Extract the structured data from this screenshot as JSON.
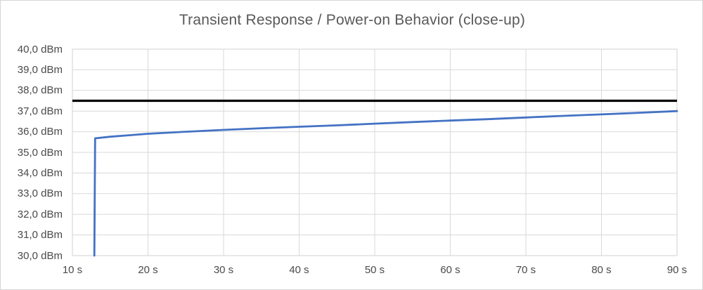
{
  "frame": {
    "background_color": "#ffffff",
    "border_color": "#d6d6d6"
  },
  "chart_data": {
    "type": "line",
    "title": "Transient Response / Power-on Behavior (close-up)",
    "xlabel": "",
    "ylabel": "",
    "x_unit": "s",
    "y_unit": "dBm",
    "xlim": [
      10,
      90
    ],
    "ylim": [
      30,
      40
    ],
    "grid": true,
    "legend": "none",
    "grid_color": "#d9d9d9",
    "x_ticks": [
      {
        "value": 10,
        "label": "10 s"
      },
      {
        "value": 20,
        "label": "20 s"
      },
      {
        "value": 30,
        "label": "30 s"
      },
      {
        "value": 40,
        "label": "40 s"
      },
      {
        "value": 50,
        "label": "50 s"
      },
      {
        "value": 60,
        "label": "60 s"
      },
      {
        "value": 70,
        "label": "70 s"
      },
      {
        "value": 80,
        "label": "80 s"
      },
      {
        "value": 90,
        "label": "90 s"
      }
    ],
    "y_ticks": [
      {
        "value": 40,
        "label": "40,0 dBm"
      },
      {
        "value": 39,
        "label": "39,0 dBm"
      },
      {
        "value": 38,
        "label": "38,0 dBm"
      },
      {
        "value": 37,
        "label": "37,0 dBm"
      },
      {
        "value": 36,
        "label": "36,0 dBm"
      },
      {
        "value": 35,
        "label": "35,0 dBm"
      },
      {
        "value": 34,
        "label": "34,0 dBm"
      },
      {
        "value": 33,
        "label": "33,0 dBm"
      },
      {
        "value": 32,
        "label": "32,0 dBm"
      },
      {
        "value": 31,
        "label": "31,0 dBm"
      },
      {
        "value": 30,
        "label": "30,0 dBm"
      }
    ],
    "limit_line": {
      "y": 37.5,
      "color": "#000000"
    },
    "series": [
      {
        "color": "#4472c4",
        "points": [
          [
            12.9,
            30.0
          ],
          [
            13.0,
            35.68
          ],
          [
            15.0,
            35.76
          ],
          [
            17.5,
            35.83
          ],
          [
            20.0,
            35.9
          ],
          [
            25.0,
            36.0
          ],
          [
            30.0,
            36.09
          ],
          [
            35.0,
            36.17
          ],
          [
            40.0,
            36.24
          ],
          [
            45.0,
            36.31
          ],
          [
            50.0,
            36.39
          ],
          [
            55.0,
            36.47
          ],
          [
            60.0,
            36.54
          ],
          [
            65.0,
            36.61
          ],
          [
            70.0,
            36.69
          ],
          [
            75.0,
            36.77
          ],
          [
            80.0,
            36.84
          ],
          [
            85.0,
            36.92
          ],
          [
            90.0,
            37.0
          ]
        ]
      }
    ]
  }
}
